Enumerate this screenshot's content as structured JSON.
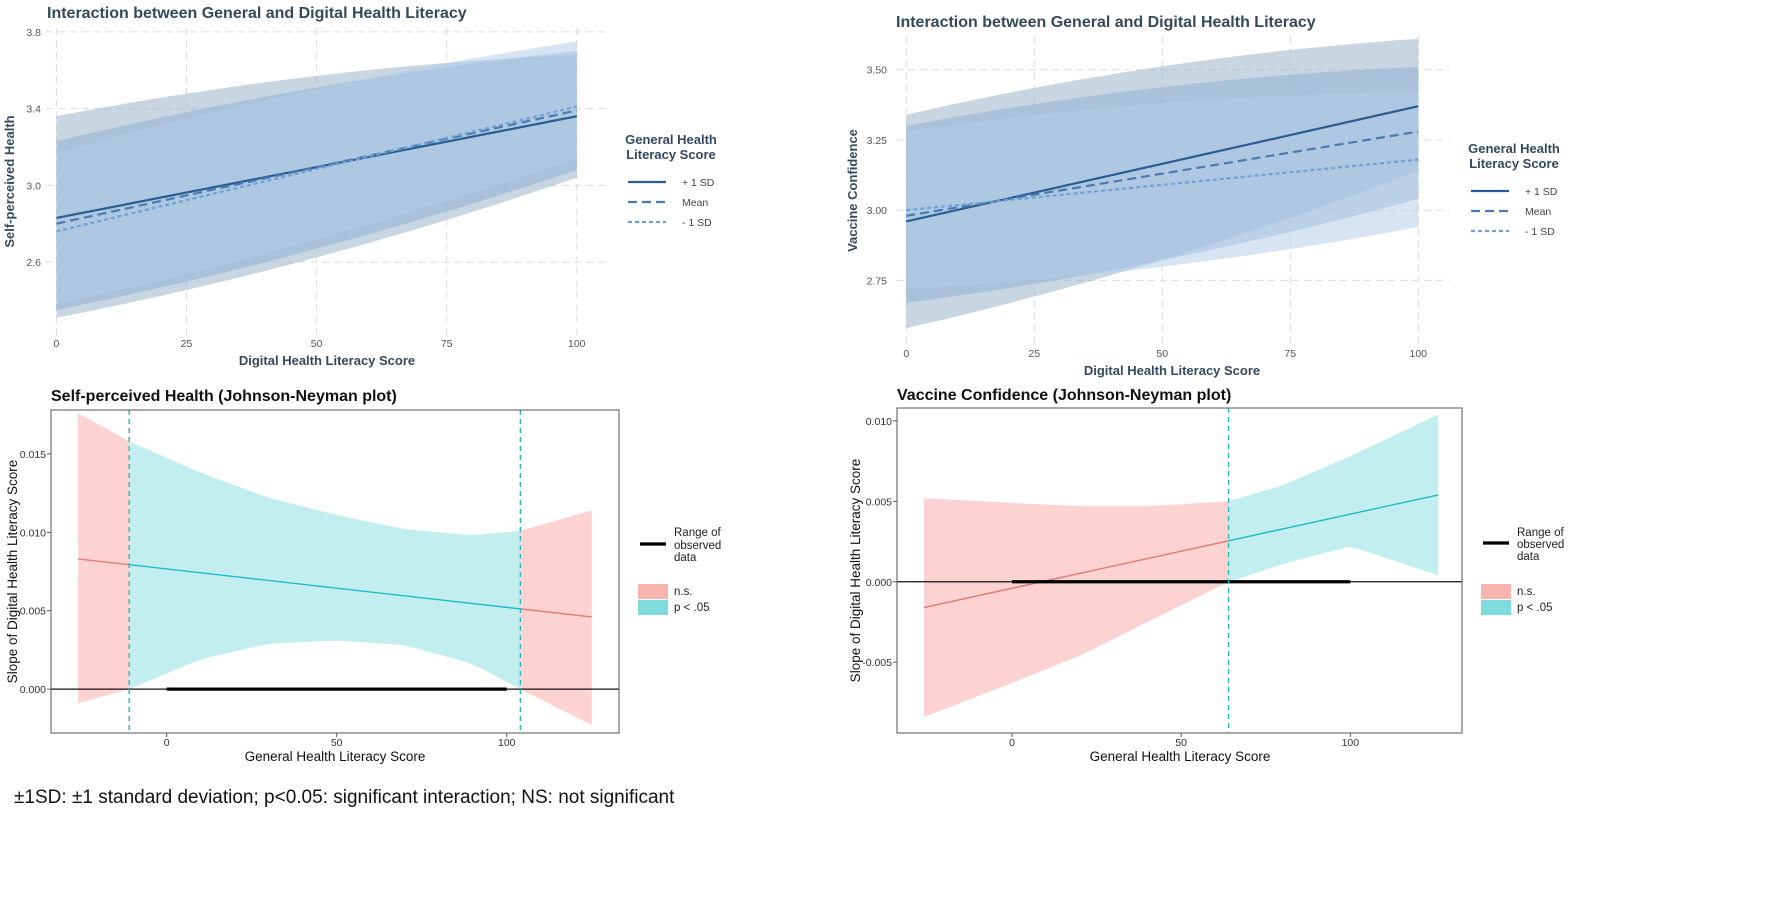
{
  "chart_data": [
    {
      "type": "line",
      "title": "Interaction between General and Digital Health Literacy",
      "xlabel": "Digital Health Literacy Score",
      "ylabel": "Self-perceived Health",
      "xlim": [
        0,
        100
      ],
      "ylim": [
        2.22,
        3.82
      ],
      "xticks": [
        0,
        25,
        50,
        75,
        100
      ],
      "yticks": [
        2.6,
        3.0,
        3.4,
        3.8
      ],
      "ytick_labels": [
        "2.6",
        "3.0",
        "3.4",
        "3.8"
      ],
      "grid": true,
      "legend": {
        "title": [
          "General Health",
          "Literacy Score"
        ],
        "position": "right",
        "entries": [
          "+ 1 SD",
          "Mean",
          "- 1 SD"
        ]
      },
      "series": [
        {
          "name": "+ 1 SD",
          "style": "solid",
          "x": [
            0,
            100
          ],
          "y": [
            2.83,
            3.36
          ],
          "lower": [
            2.31,
            3.04
          ],
          "upper": [
            3.36,
            3.68
          ]
        },
        {
          "name": "Mean",
          "style": "dashed",
          "x": [
            0,
            100
          ],
          "y": [
            2.8,
            3.39
          ],
          "lower": [
            2.35,
            3.08
          ],
          "upper": [
            3.23,
            3.7
          ]
        },
        {
          "name": "- 1 SD",
          "style": "dotted",
          "x": [
            0,
            100
          ],
          "y": [
            2.76,
            3.41
          ],
          "lower": [
            2.38,
            3.14
          ],
          "upper": [
            3.17,
            3.75
          ]
        }
      ]
    },
    {
      "type": "line",
      "title": "Interaction between General and Digital Health Literacy",
      "xlabel": "Digital Health Literacy Score",
      "ylabel": "Vaccine Confidence",
      "xlim": [
        0,
        100
      ],
      "ylim": [
        2.52,
        3.62
      ],
      "xticks": [
        0,
        25,
        50,
        75,
        100
      ],
      "yticks": [
        2.75,
        3.0,
        3.25,
        3.5
      ],
      "ytick_labels": [
        "2.75",
        "3.00",
        "3.25",
        "3.50"
      ],
      "grid": true,
      "legend": {
        "title": [
          "General Health",
          "Literacy Score"
        ],
        "position": "right",
        "entries": [
          "+ 1 SD",
          "Mean",
          "- 1 SD"
        ]
      },
      "series": [
        {
          "name": "+ 1 SD",
          "style": "solid",
          "x": [
            0,
            100
          ],
          "y": [
            2.96,
            3.37
          ],
          "lower": [
            2.58,
            3.14
          ],
          "upper": [
            3.34,
            3.61
          ]
        },
        {
          "name": "Mean",
          "style": "dashed",
          "x": [
            0,
            100
          ],
          "y": [
            2.98,
            3.28
          ],
          "lower": [
            2.67,
            3.04
          ],
          "upper": [
            3.3,
            3.51
          ]
        },
        {
          "name": "- 1 SD",
          "style": "dotted",
          "x": [
            0,
            100
          ],
          "y": [
            3.0,
            3.18
          ],
          "lower": [
            2.72,
            2.94
          ],
          "upper": [
            3.28,
            3.42
          ]
        }
      ]
    },
    {
      "type": "line",
      "title": "Self-perceived Health (Johnson-Neyman plot)",
      "xlabel": "General Health Literacy Score",
      "ylabel": "Slope of Digital Health Literacy Score",
      "xlim": [
        -34,
        133
      ],
      "ylim": [
        -0.0028,
        0.0178
      ],
      "xticks": [
        0,
        50,
        100
      ],
      "yticks": [
        0.0,
        0.005,
        0.01,
        0.015
      ],
      "ytick_labels": [
        "0.000",
        "0.005",
        "0.010",
        "0.015"
      ],
      "grid": false,
      "zero_line": 0,
      "jn_bounds": [
        -11,
        104
      ],
      "observed_range": [
        0,
        100
      ],
      "slope_line": {
        "x": [
          -26,
          125
        ],
        "y": [
          0.0083,
          0.0046
        ]
      },
      "band": {
        "x": [
          -26,
          -11,
          10,
          30,
          50,
          70,
          90,
          104,
          125
        ],
        "upper": [
          0.0176,
          0.0158,
          0.0138,
          0.0122,
          0.0111,
          0.0102,
          0.0098,
          0.0101,
          0.0114
        ],
        "lower": [
          -0.0009,
          0.0,
          0.0019,
          0.0029,
          0.0031,
          0.0028,
          0.0016,
          0.0,
          -0.0023
        ]
      },
      "legend": {
        "position": "right",
        "range_label": [
          "Range of",
          "observed",
          "data"
        ],
        "entries": [
          "n.s.",
          "p < .05"
        ]
      }
    },
    {
      "type": "line",
      "title": "Vaccine Confidence (Johnson-Neyman plot)",
      "xlabel": "General Health Literacy Score",
      "ylabel": "Slope of Digital Health Literacy Score",
      "xlim": [
        -34,
        133
      ],
      "ylim": [
        -0.0094,
        0.0108
      ],
      "xticks": [
        0,
        50,
        100
      ],
      "yticks": [
        -0.005,
        0.0,
        0.005,
        0.01
      ],
      "ytick_labels": [
        "-0.005",
        "0.000",
        "0.005",
        "0.010"
      ],
      "grid": false,
      "zero_line": 0,
      "jn_bounds": [
        64
      ],
      "observed_range": [
        0,
        100
      ],
      "slope_line": {
        "x": [
          -26,
          126
        ],
        "y": [
          -0.0016,
          0.0054
        ]
      },
      "band": {
        "x": [
          -26,
          0,
          20,
          40,
          64,
          80,
          100,
          126
        ],
        "upper": [
          0.0052,
          0.0049,
          0.0047,
          0.0047,
          0.005,
          0.006,
          0.0078,
          0.0104
        ],
        "lower": [
          -0.0084,
          -0.0063,
          -0.0046,
          -0.0025,
          0.0,
          0.0011,
          0.0022,
          0.0004
        ]
      },
      "legend": {
        "position": "right",
        "range_label": [
          "Range of",
          "observed",
          "data"
        ],
        "entries": [
          "n.s.",
          "p < .05"
        ]
      }
    }
  ],
  "footnote": "±1SD: ±1 standard deviation; p<0.05: significant interaction; NS: not significant",
  "colors": {
    "series_line": [
      "#2a5d91",
      "#4a7ab0",
      "#6ea0d8"
    ],
    "series_band": [
      "#9bb4cb",
      "#8fb0d2",
      "#b4cdea"
    ],
    "ns_fill": "#fcd3d1",
    "sig_fill": "#c3eef0",
    "ns_line": "#e07b72",
    "sig_line": "#1fbcc4",
    "jn_line": "#1fbcc4",
    "legend_ns": "#f8b5b0",
    "legend_sig": "#7fdadd"
  }
}
